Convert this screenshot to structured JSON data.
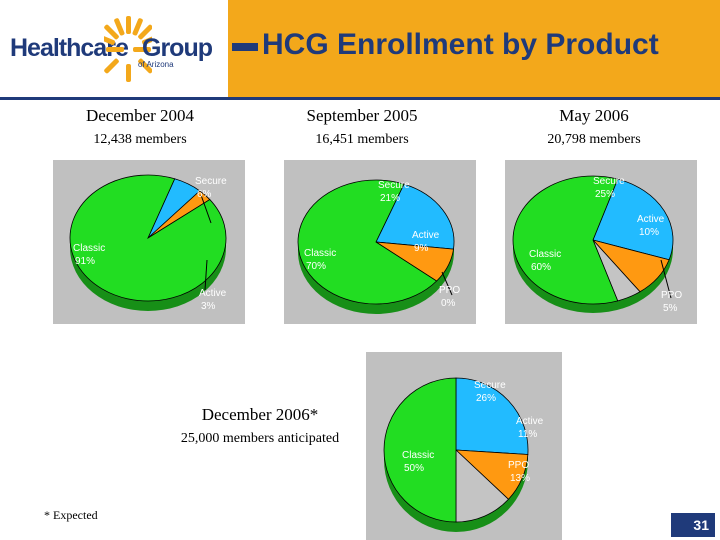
{
  "header": {
    "logo_name_left": "Healthcare",
    "logo_name_right": "Group",
    "logo_sub": "of Arizona",
    "title": "HCG Enrollment by Product"
  },
  "colors": {
    "header_bg": "#f3a81b",
    "navy": "#1f3a7a",
    "Classic": "#22dd22",
    "Secure": "#22bbff",
    "Active": "#ff9911",
    "PPO": "#c4c4c4"
  },
  "periods": [
    {
      "title": "December 2004",
      "members": "12,438 members"
    },
    {
      "title": "September 2005",
      "members": "16,451 members"
    },
    {
      "title": "May 2006",
      "members": "20,798 members"
    },
    {
      "title": "December 2006*",
      "members": "25,000 members anticipated"
    }
  ],
  "chart_data": [
    {
      "type": "pie",
      "categories": [
        "Classic",
        "Secure",
        "Active"
      ],
      "values": [
        91,
        6,
        3
      ],
      "labels": [
        "Classic 91%",
        "Secure 6%",
        "Active 3%"
      ]
    },
    {
      "type": "pie",
      "categories": [
        "Classic",
        "Secure",
        "Active",
        "PPO"
      ],
      "values": [
        70,
        21,
        9,
        0
      ],
      "labels": [
        "Classic 70%",
        "Secure 21%",
        "Active 9%",
        "PPO 0%"
      ]
    },
    {
      "type": "pie",
      "categories": [
        "Classic",
        "Secure",
        "Active",
        "PPO"
      ],
      "values": [
        60,
        25,
        10,
        5
      ],
      "labels": [
        "Classic 60%",
        "Secure 25%",
        "Active 10%",
        "PPO 5%"
      ]
    },
    {
      "type": "pie",
      "categories": [
        "Classic",
        "Secure",
        "Active",
        "PPO"
      ],
      "values": [
        50,
        26,
        11,
        13
      ],
      "labels": [
        "Classic 50%",
        "Secure 26%",
        "Active 11%",
        "PPO 13%"
      ]
    }
  ],
  "footnote": "* Expected",
  "page_number": "31"
}
